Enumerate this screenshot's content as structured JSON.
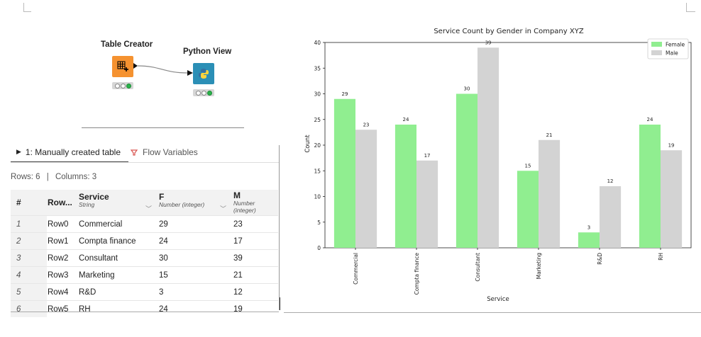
{
  "workflow": {
    "node1": {
      "title": "Table Creator",
      "icon": "table-plus-icon",
      "color": "#f59230"
    },
    "node2": {
      "title": "Python View",
      "icon": "python-icon",
      "color": "#2b8fb6"
    }
  },
  "tabs": [
    {
      "label": "1: Manually created table",
      "icon": "play-triangle-icon"
    },
    {
      "label": "Flow Variables",
      "icon": "flow-variable-icon"
    }
  ],
  "info": {
    "rows": "Rows: 6",
    "sep": "|",
    "columns": "Columns: 3"
  },
  "table": {
    "headers": [
      {
        "name": "#",
        "type": ""
      },
      {
        "name": "Row...",
        "type": ""
      },
      {
        "name": "Service",
        "type": "String"
      },
      {
        "name": "F",
        "type": "Number (integer)"
      },
      {
        "name": "M",
        "type": "Number (integer)"
      }
    ],
    "rows": [
      [
        "1",
        "Row0",
        "Commercial",
        "29",
        "23"
      ],
      [
        "2",
        "Row1",
        "Compta finance",
        "24",
        "17"
      ],
      [
        "3",
        "Row2",
        "Consultant",
        "30",
        "39"
      ],
      [
        "4",
        "Row3",
        "Marketing",
        "15",
        "21"
      ],
      [
        "5",
        "Row4",
        "R&D",
        "3",
        "12"
      ],
      [
        "6",
        "Row5",
        "RH",
        "24",
        "19"
      ]
    ]
  },
  "chart_data": {
    "type": "bar",
    "title": "Service Count by Gender in Company XYZ",
    "xlabel": "Service",
    "ylabel": "Count",
    "categories": [
      "Commercial",
      "Compta finance",
      "Consultant",
      "Marketing",
      "R&D",
      "RH"
    ],
    "series": [
      {
        "name": "Female",
        "values": [
          29,
          24,
          30,
          15,
          3,
          24
        ],
        "color": "#90ee90"
      },
      {
        "name": "Male",
        "values": [
          23,
          17,
          39,
          21,
          12,
          19
        ],
        "color": "#d3d3d3"
      }
    ],
    "ylim": [
      0,
      40
    ],
    "yticks": [
      "0",
      "5",
      "10",
      "15",
      "20",
      "25",
      "30",
      "35",
      "40"
    ],
    "legend": "top-right",
    "grid": false
  }
}
